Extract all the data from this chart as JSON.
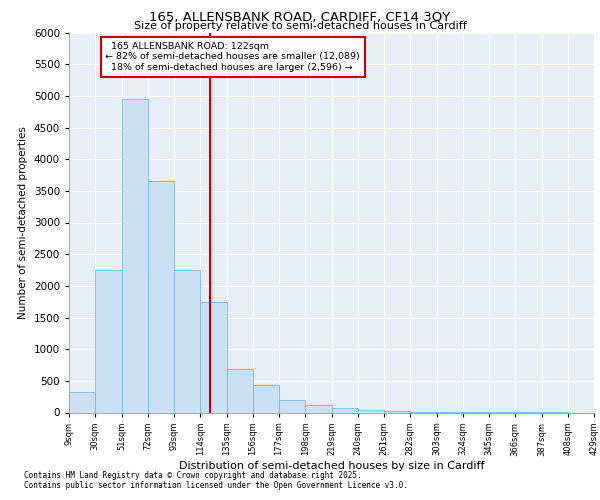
{
  "title1": "165, ALLENSBANK ROAD, CARDIFF, CF14 3QY",
  "title2": "Size of property relative to semi-detached houses in Cardiff",
  "xlabel": "Distribution of semi-detached houses by size in Cardiff",
  "ylabel": "Number of semi-detached properties",
  "bin_labels": [
    "9sqm",
    "30sqm",
    "51sqm",
    "72sqm",
    "93sqm",
    "114sqm",
    "135sqm",
    "156sqm",
    "177sqm",
    "198sqm",
    "219sqm",
    "240sqm",
    "261sqm",
    "282sqm",
    "303sqm",
    "324sqm",
    "345sqm",
    "366sqm",
    "387sqm",
    "408sqm",
    "429sqm"
  ],
  "bin_edges": [
    9,
    30,
    51,
    72,
    93,
    114,
    135,
    156,
    177,
    198,
    219,
    240,
    261,
    282,
    303,
    324,
    345,
    366,
    387,
    408,
    429
  ],
  "bar_heights": [
    330,
    2250,
    4950,
    3650,
    2250,
    1750,
    680,
    430,
    200,
    120,
    70,
    40,
    25,
    15,
    10,
    6,
    4,
    2,
    1,
    0
  ],
  "property_size": 122,
  "pct_smaller": 82,
  "pct_larger": 18,
  "count_smaller": 12089,
  "count_larger": 2596,
  "property_label": "165 ALLENSBANK ROAD: 122sqm",
  "bar_color": "#cce0f5",
  "bar_edge_color": "#6baed6",
  "vline_color": "#cc0000",
  "annotation_box_color": "#cc0000",
  "plot_bg_color": "#e8eef4",
  "fig_bg_color": "#ffffff",
  "grid_color": "#ffffff",
  "ylim": [
    0,
    6000
  ],
  "yticks": [
    0,
    500,
    1000,
    1500,
    2000,
    2500,
    3000,
    3500,
    4000,
    4500,
    5000,
    5500,
    6000
  ],
  "footer1": "Contains HM Land Registry data © Crown copyright and database right 2025.",
  "footer2": "Contains public sector information licensed under the Open Government Licence v3.0."
}
